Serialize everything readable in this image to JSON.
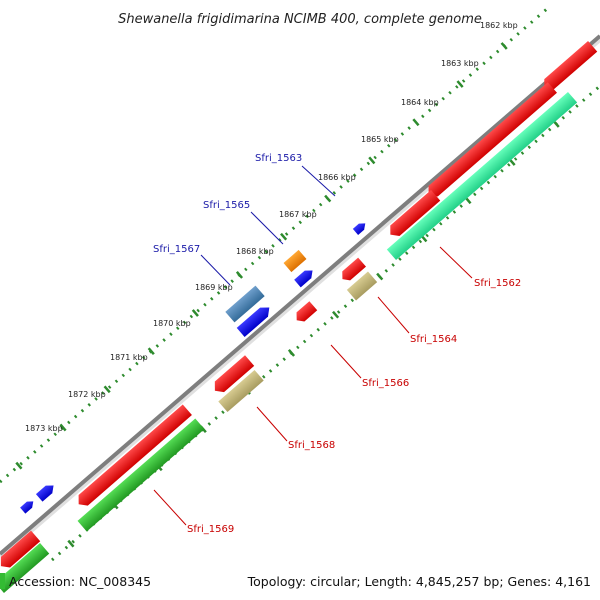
{
  "header": {
    "title": "Shewanella frigidimarina NCIMB 400, complete genome"
  },
  "footer": {
    "accession": "Accession: NC_008345",
    "summary": "Topology: circular; Length: 4,845,257 bp; Genes: 4,161"
  },
  "ticks": [
    {
      "label": "1862 kbp"
    },
    {
      "label": "1863 kbp"
    },
    {
      "label": "1864 kbp"
    },
    {
      "label": "1865 kbp"
    },
    {
      "label": "1866 kbp"
    },
    {
      "label": "1867 kbp"
    },
    {
      "label": "1868 kbp"
    },
    {
      "label": "1869 kbp"
    },
    {
      "label": "1870 kbp"
    },
    {
      "label": "1871 kbp"
    },
    {
      "label": "1872 kbp"
    },
    {
      "label": "1873 kbp"
    }
  ],
  "gene_labels_upper": [
    {
      "label": "Sfri_1563"
    },
    {
      "label": "Sfri_1565"
    },
    {
      "label": "Sfri_1567"
    }
  ],
  "gene_labels_lower": [
    {
      "label": "Sfri_1562"
    },
    {
      "label": "Sfri_1564"
    },
    {
      "label": "Sfri_1566"
    },
    {
      "label": "Sfri_1568"
    },
    {
      "label": "Sfri_1569"
    }
  ],
  "colors": {
    "backbone": "#8a8a8a",
    "tick": "#2e8b2e",
    "cds_forward": "#0000ee",
    "cds_reverse": "#ee0000",
    "cog_teal": "#33ee99",
    "cog_green": "#33bb33",
    "cog_khaki": "#c2b67a",
    "cog_orange": "#ff8c00",
    "cog_steelblue": "#4682b4",
    "label_blue": "#1a1aa8",
    "label_red": "#c80000"
  }
}
